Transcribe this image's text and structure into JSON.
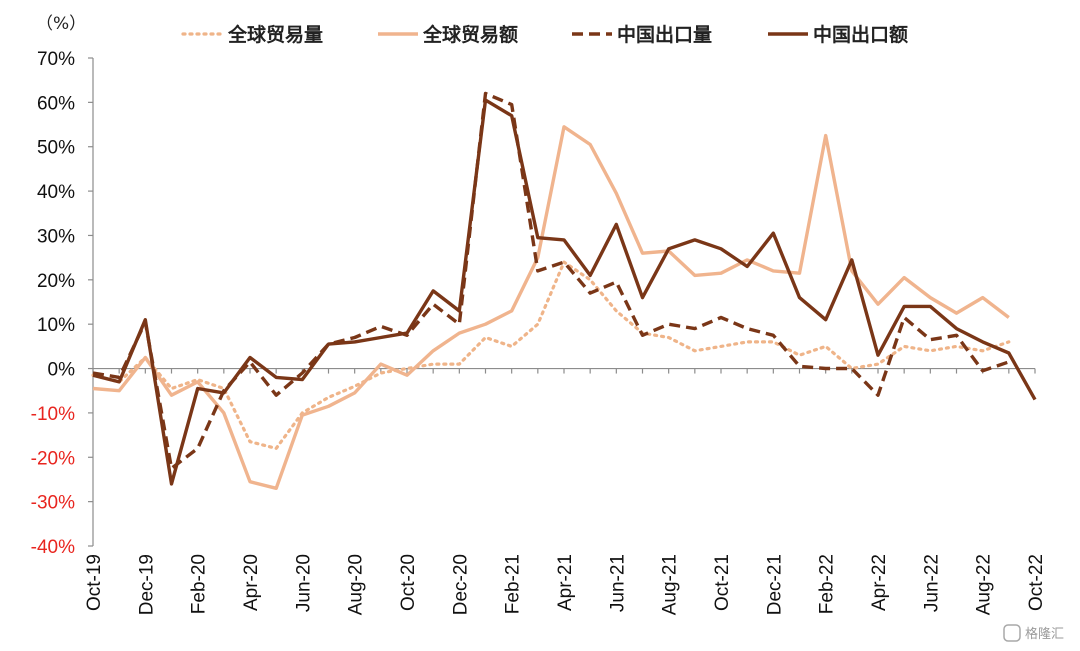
{
  "chart_data": {
    "type": "line",
    "unit_label": "（%）",
    "ylim": [
      -40,
      70
    ],
    "y_ticks": [
      70,
      60,
      50,
      40,
      30,
      20,
      10,
      0,
      -10,
      -20,
      -30,
      -40
    ],
    "y_tick_labels": [
      "70%",
      "60%",
      "50%",
      "40%",
      "30%",
      "20%",
      "10%",
      "0%",
      "-10%",
      "-20%",
      "-30%",
      "-40%"
    ],
    "negative_tick_color": "#e8251f",
    "grid": false,
    "legend_position": "top",
    "x": [
      "Oct-19",
      "Nov-19",
      "Dec-19",
      "Jan-20",
      "Feb-20",
      "Mar-20",
      "Apr-20",
      "May-20",
      "Jun-20",
      "Jul-20",
      "Aug-20",
      "Sep-20",
      "Oct-20",
      "Nov-20",
      "Dec-20",
      "Jan-21",
      "Feb-21",
      "Mar-21",
      "Apr-21",
      "May-21",
      "Jun-21",
      "Jul-21",
      "Aug-21",
      "Sep-21",
      "Oct-21",
      "Nov-21",
      "Dec-21",
      "Jan-22",
      "Feb-22",
      "Mar-22",
      "Apr-22",
      "May-22",
      "Jun-22",
      "Jul-22",
      "Aug-22",
      "Sep-22",
      "Oct-22"
    ],
    "x_tick_labels": [
      "Oct-19",
      "Dec-19",
      "Feb-20",
      "Apr-20",
      "Jun-20",
      "Aug-20",
      "Oct-20",
      "Dec-20",
      "Feb-21",
      "Apr-21",
      "Jun-21",
      "Aug-21",
      "Oct-21",
      "Dec-21",
      "Feb-22",
      "Apr-22",
      "Jun-22",
      "Aug-22",
      "Oct-22"
    ],
    "series": [
      {
        "name": "全球贸易量",
        "color": "#efb489",
        "style": "dotted",
        "values": [
          -1.5,
          -3,
          2.5,
          -4.5,
          -2.5,
          -4.5,
          -16.5,
          -18,
          -10,
          -6.5,
          -4,
          -1,
          0,
          1,
          1,
          7,
          5,
          10,
          24,
          20,
          13,
          8,
          7,
          4,
          5,
          6,
          6,
          3,
          5,
          0,
          1,
          5,
          4,
          5,
          4,
          6,
          null
        ]
      },
      {
        "name": "全球贸易额",
        "color": "#f0b48e",
        "style": "solid",
        "values": [
          -4.5,
          -5,
          2.5,
          -6,
          -3,
          -10,
          -25.5,
          -27,
          -10.5,
          -8.5,
          -5.5,
          1,
          -1.5,
          4,
          8,
          10,
          13,
          25,
          54.5,
          50.5,
          39.5,
          26,
          26.5,
          21,
          21.5,
          24.5,
          22,
          21.5,
          52.5,
          22,
          14.5,
          20.5,
          16,
          12.5,
          16,
          11.5,
          null
        ]
      },
      {
        "name": "中国出口量",
        "color": "#7a3617",
        "style": "dashed",
        "values": [
          -1,
          -2,
          10.5,
          -22.5,
          -18,
          -5,
          1.5,
          -6,
          -1,
          5.5,
          7,
          9.5,
          7.5,
          14.5,
          10,
          62,
          59.5,
          22,
          24,
          17,
          19.5,
          7.5,
          10,
          9,
          11.5,
          9,
          7.5,
          0.5,
          0,
          0,
          -6,
          11.5,
          6.5,
          7.5,
          -0.5,
          1.5,
          null
        ]
      },
      {
        "name": "中国出口额",
        "color": "#7a3617",
        "style": "solid",
        "values": [
          -1.5,
          -3,
          11,
          -26,
          -4.5,
          -5.5,
          2.5,
          -2,
          -2.5,
          5.5,
          6,
          7,
          8,
          17.5,
          13,
          60.5,
          57,
          29.5,
          29,
          21,
          32.5,
          16,
          27,
          29,
          27,
          23,
          30.5,
          16,
          11,
          24.5,
          3,
          14,
          14,
          9,
          6,
          3.5,
          -7
        ]
      }
    ]
  },
  "watermark": "格隆汇"
}
